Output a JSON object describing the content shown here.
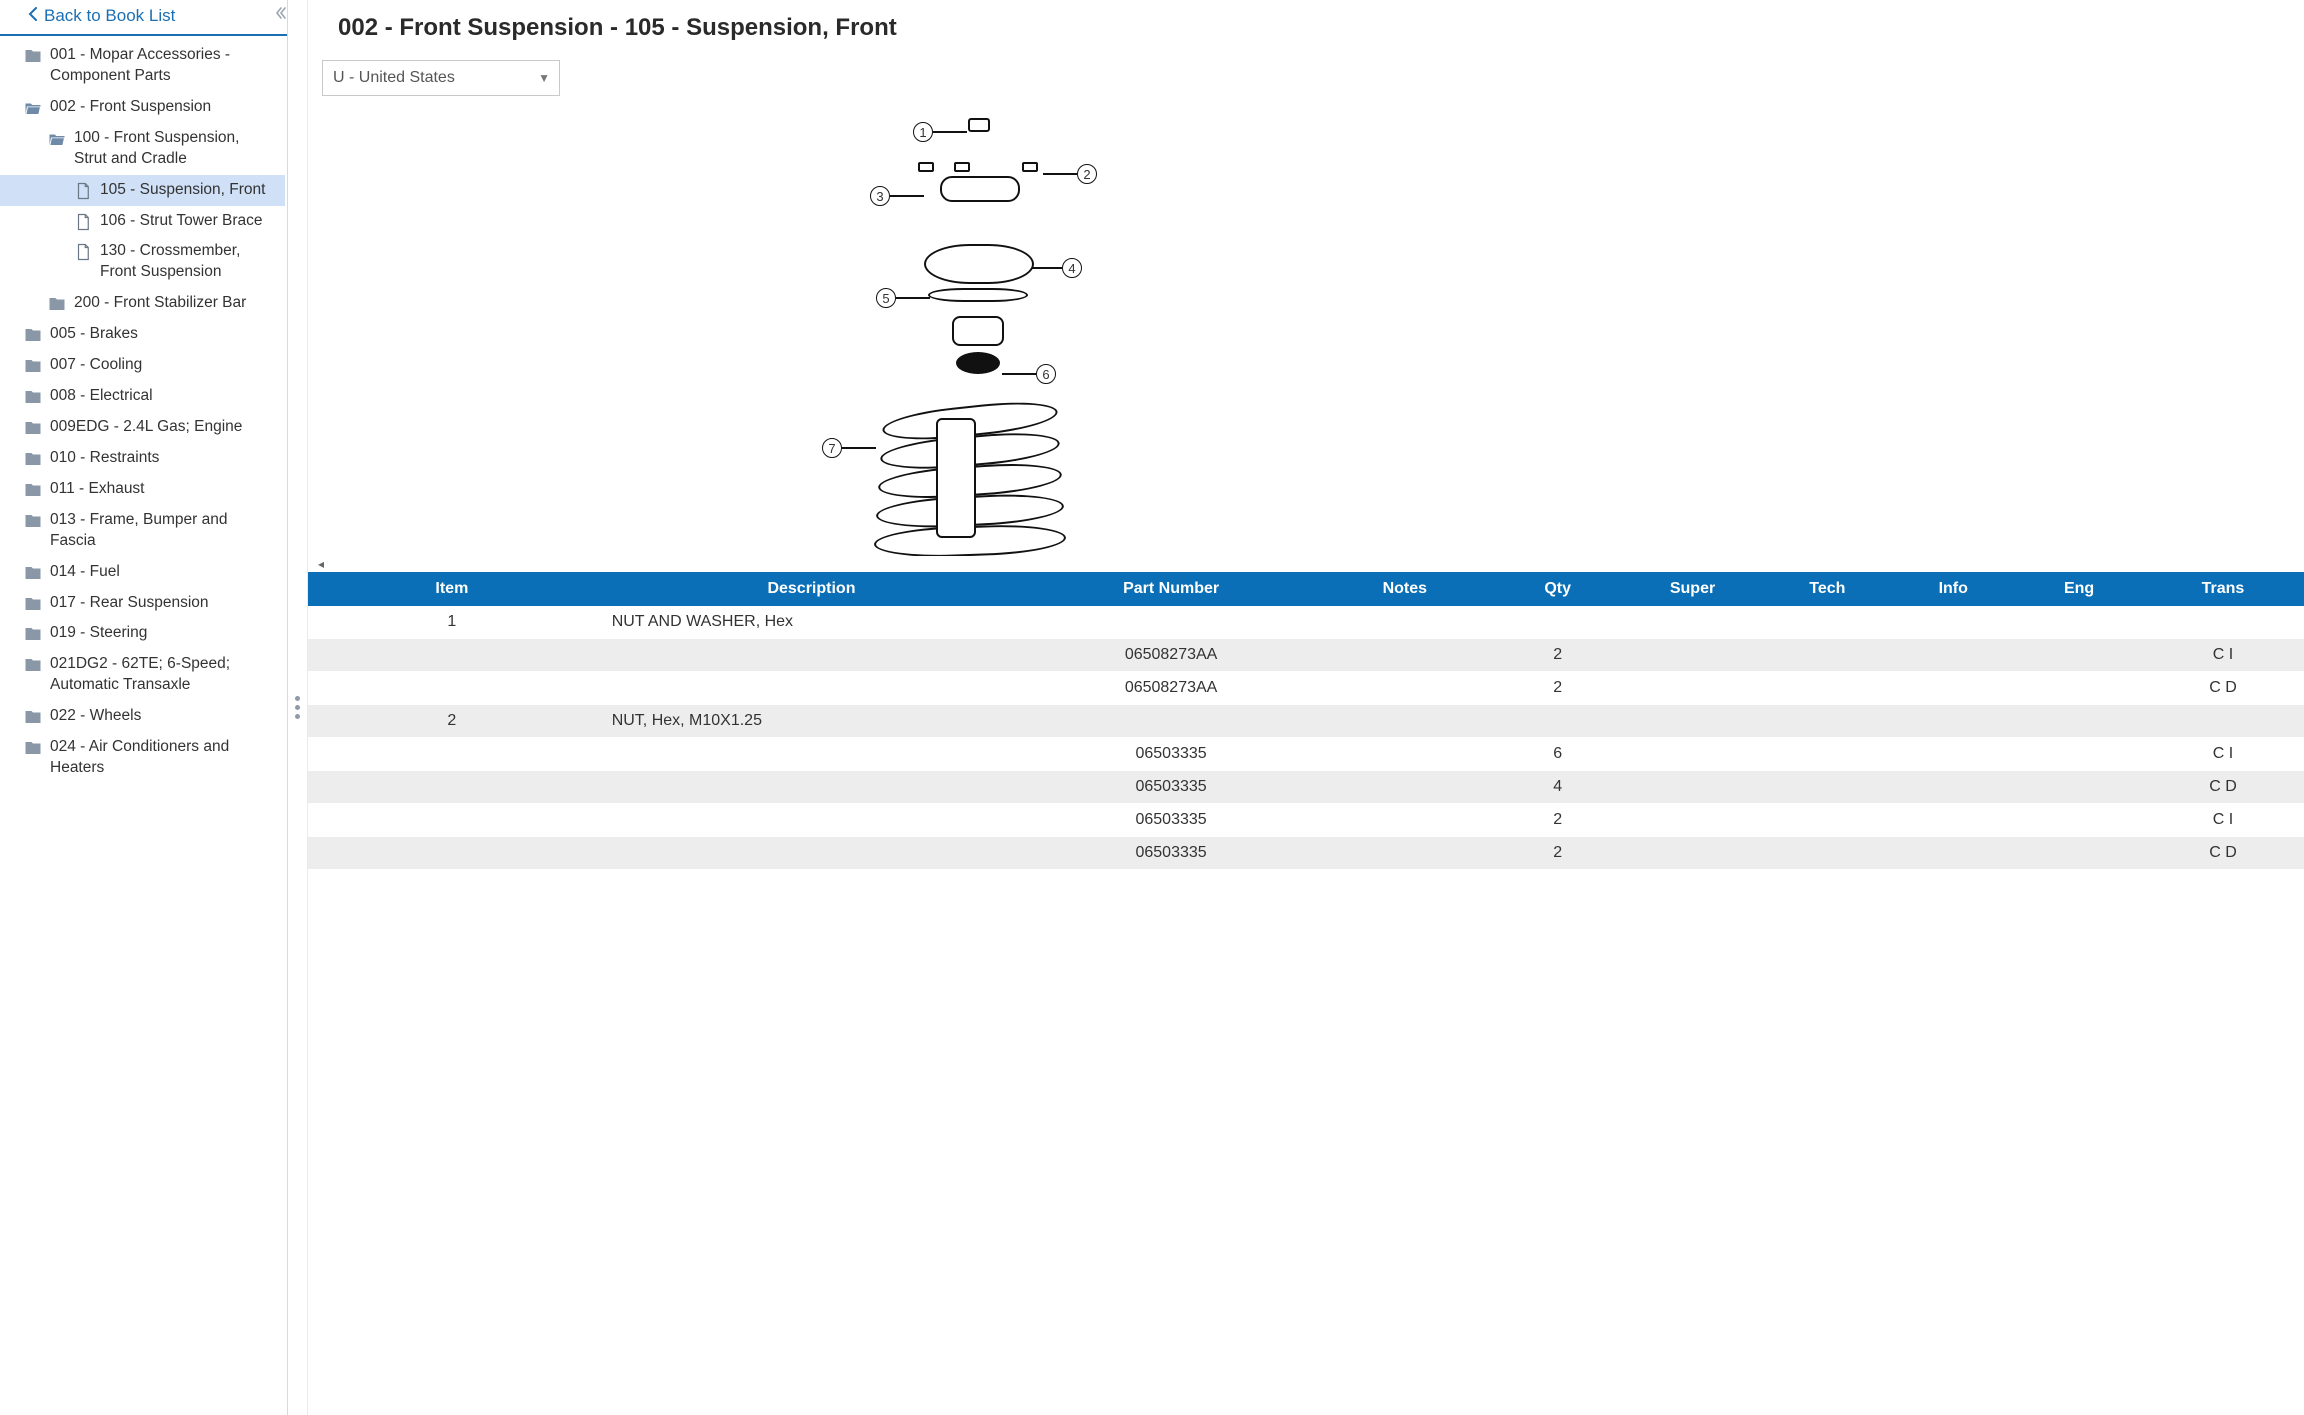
{
  "back_link": {
    "label": "Back to Book List"
  },
  "sidebar": {
    "items": [
      {
        "level": 0,
        "icon": "folder",
        "label": "001 - Mopar Accessories - Component Parts"
      },
      {
        "level": 0,
        "icon": "folder-open",
        "label": "002 - Front Suspension"
      },
      {
        "level": 1,
        "icon": "folder-open",
        "label": "100 - Front Suspension, Strut and Cradle"
      },
      {
        "level": 2,
        "icon": "page",
        "label": "105 - Suspension, Front",
        "selected": true
      },
      {
        "level": 2,
        "icon": "page",
        "label": "106 - Strut Tower Brace"
      },
      {
        "level": 2,
        "icon": "page",
        "label": "130 - Crossmember, Front Suspension"
      },
      {
        "level": 1,
        "icon": "folder",
        "label": "200 - Front Stabilizer Bar"
      },
      {
        "level": 0,
        "icon": "folder",
        "label": "005 - Brakes"
      },
      {
        "level": 0,
        "icon": "folder",
        "label": "007 - Cooling"
      },
      {
        "level": 0,
        "icon": "folder",
        "label": "008 - Electrical"
      },
      {
        "level": 0,
        "icon": "folder",
        "label": "009EDG - 2.4L Gas; Engine"
      },
      {
        "level": 0,
        "icon": "folder",
        "label": "010 - Restraints"
      },
      {
        "level": 0,
        "icon": "folder",
        "label": "011 - Exhaust"
      },
      {
        "level": 0,
        "icon": "folder",
        "label": "013 - Frame, Bumper and Fascia"
      },
      {
        "level": 0,
        "icon": "folder",
        "label": "014 - Fuel"
      },
      {
        "level": 0,
        "icon": "folder",
        "label": "017 - Rear Suspension"
      },
      {
        "level": 0,
        "icon": "folder",
        "label": "019 - Steering"
      },
      {
        "level": 0,
        "icon": "folder",
        "label": "021DG2 - 62TE; 6-Speed; Automatic Transaxle"
      },
      {
        "level": 0,
        "icon": "folder",
        "label": "022 - Wheels"
      },
      {
        "level": 0,
        "icon": "folder",
        "label": "024 - Air Conditioners and Heaters"
      }
    ]
  },
  "page": {
    "title": "002 - Front Suspension - 105 - Suspension, Front"
  },
  "region_select": {
    "value": "U - United States"
  },
  "diagram": {
    "callouts": [
      "1",
      "2",
      "3",
      "4",
      "5",
      "6",
      "7"
    ]
  },
  "table": {
    "headers": {
      "item": "Item",
      "description": "Description",
      "part_number": "Part Number",
      "notes": "Notes",
      "qty": "Qty",
      "super": "Super",
      "tech": "Tech",
      "info": "Info",
      "eng": "Eng",
      "trans": "Trans"
    },
    "rows": [
      {
        "shade": false,
        "item": "1",
        "description": "NUT AND WASHER, Hex",
        "part_number": "",
        "qty": "",
        "trans_tail": ""
      },
      {
        "shade": true,
        "item": "",
        "description": "",
        "part_number": "06508273AA",
        "qty": "2",
        "trans_tail": "C I"
      },
      {
        "shade": false,
        "item": "",
        "description": "",
        "part_number": "06508273AA",
        "qty": "2",
        "trans_tail": "C D"
      },
      {
        "shade": true,
        "item": "2",
        "description": "NUT, Hex, M10X1.25",
        "part_number": "",
        "qty": "",
        "trans_tail": ""
      },
      {
        "shade": false,
        "item": "",
        "description": "",
        "part_number": "06503335",
        "qty": "6",
        "trans_tail": "C I"
      },
      {
        "shade": true,
        "item": "",
        "description": "",
        "part_number": "06503335",
        "qty": "4",
        "trans_tail": "C D"
      },
      {
        "shade": false,
        "item": "",
        "description": "",
        "part_number": "06503335",
        "qty": "2",
        "trans_tail": "C I"
      },
      {
        "shade": true,
        "item": "",
        "description": "",
        "part_number": "06503335",
        "qty": "2",
        "trans_tail": "C D"
      }
    ]
  }
}
